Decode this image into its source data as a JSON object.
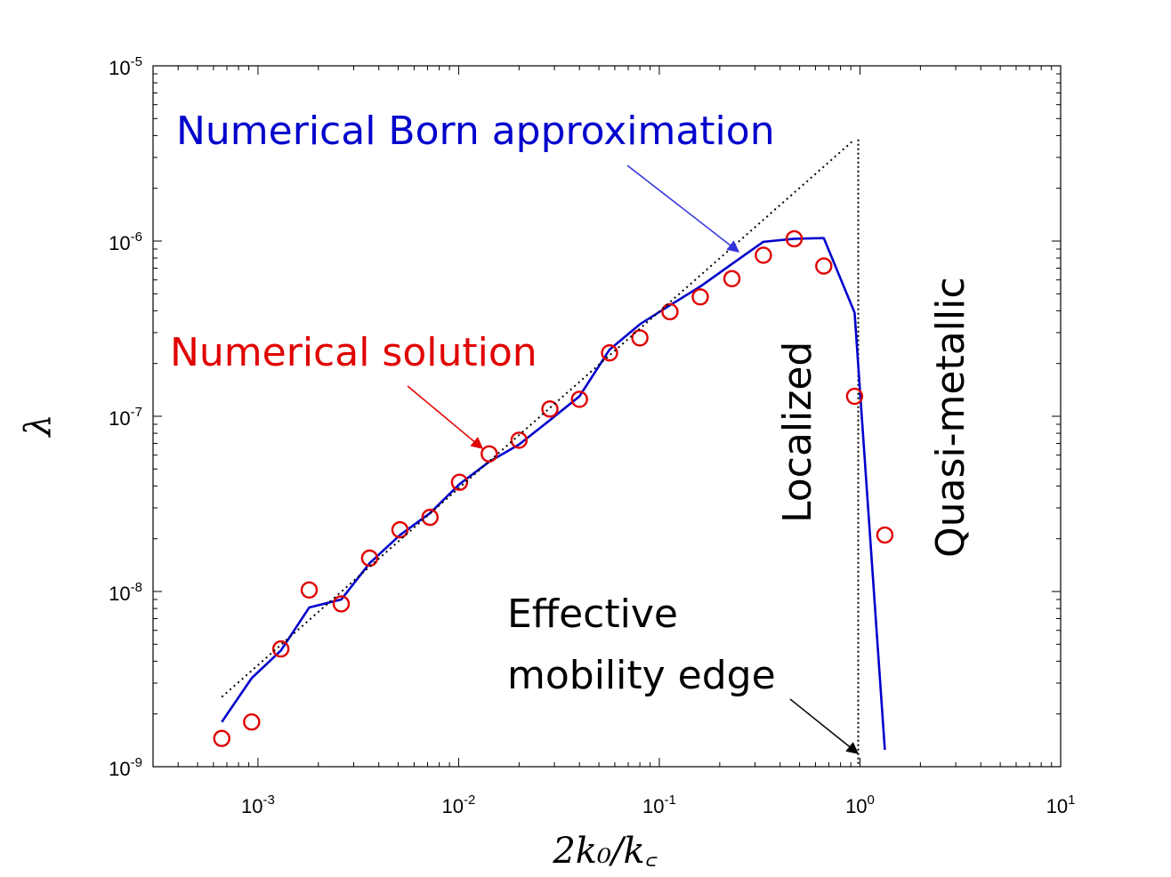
{
  "chart_data": {
    "type": "line",
    "xlabel": "2k₀/k꜀",
    "ylabel": "λ",
    "xscale": "log",
    "yscale": "log",
    "xlim": [
      0.0003,
      10
    ],
    "ylim": [
      1e-09,
      1e-05
    ],
    "xticks": [
      {
        "value": 0.001,
        "base": "10",
        "exp": "-3"
      },
      {
        "value": 0.01,
        "base": "10",
        "exp": "-2"
      },
      {
        "value": 0.1,
        "base": "10",
        "exp": "-1"
      },
      {
        "value": 1,
        "base": "10",
        "exp": "0"
      },
      {
        "value": 10,
        "base": "10",
        "exp": "1"
      }
    ],
    "yticks": [
      {
        "value": 1e-09,
        "base": "10",
        "exp": "-9"
      },
      {
        "value": 1e-08,
        "base": "10",
        "exp": "-8"
      },
      {
        "value": 1e-07,
        "base": "10",
        "exp": "-7"
      },
      {
        "value": 1e-06,
        "base": "10",
        "exp": "-6"
      },
      {
        "value": 1e-05,
        "base": "10",
        "exp": "-5"
      }
    ],
    "grid": false,
    "series": [
      {
        "name": "Numerical Born approximation",
        "kind": "line",
        "color": "#0000cc",
        "x": [
          0.00066,
          0.00093,
          0.0013,
          0.0018,
          0.0026,
          0.0036,
          0.0051,
          0.0072,
          0.0101,
          0.0142,
          0.02,
          0.0285,
          0.04,
          0.0565,
          0.08,
          0.113,
          0.16,
          0.23,
          0.33,
          0.47,
          0.66,
          0.94,
          1.33
        ],
        "y": [
          1.8e-09,
          3.2e-09,
          4.6e-09,
          8.1e-09,
          9e-09,
          1.45e-08,
          2.1e-08,
          2.8e-08,
          4.1e-08,
          5.5e-08,
          6.9e-08,
          9.5e-08,
          1.3e-07,
          2.4e-07,
          3.35e-07,
          4.3e-07,
          5.5e-07,
          7.4e-07,
          9.9e-07,
          1.03e-06,
          1.04e-06,
          3.9e-07,
          1.25e-09
        ]
      },
      {
        "name": "Numerical solution",
        "kind": "scatter",
        "color": "#e00000",
        "x": [
          0.00066,
          0.00093,
          0.0013,
          0.0018,
          0.0026,
          0.0036,
          0.0051,
          0.0072,
          0.0101,
          0.0142,
          0.02,
          0.0285,
          0.04,
          0.0565,
          0.08,
          0.113,
          0.16,
          0.23,
          0.33,
          0.47,
          0.66,
          0.94,
          1.33
        ],
        "y": [
          1.45e-09,
          1.8e-09,
          4.7e-09,
          1.02e-08,
          8.5e-09,
          1.55e-08,
          2.25e-08,
          2.65e-08,
          4.2e-08,
          6.1e-08,
          7.3e-08,
          1.1e-07,
          1.25e-07,
          2.3e-07,
          2.8e-07,
          3.95e-07,
          4.8e-07,
          6.1e-07,
          8.3e-07,
          1.03e-06,
          7.2e-07,
          1.3e-07,
          2.1e-08
        ]
      },
      {
        "kind": "dotted",
        "color": "#000000",
        "x": [
          0.00066,
          0.94
        ],
        "y": [
          2.5e-09,
          3.8e-06
        ]
      }
    ],
    "vline": {
      "x": 0.98,
      "style": "dotted",
      "color": "#000000"
    },
    "annotations": {
      "born": {
        "text": "Numerical Born approximation",
        "color": "#0000cc"
      },
      "numerical": {
        "text": "Numerical solution",
        "color": "#e00000"
      },
      "localized": {
        "text": "Localized",
        "color": "#000000"
      },
      "quasi": {
        "text": "Quasi-metallic",
        "color": "#000000"
      },
      "mobility_line1": {
        "text": "Effective",
        "color": "#000000"
      },
      "mobility_line2": {
        "text": "mobility edge",
        "color": "#000000"
      }
    }
  }
}
